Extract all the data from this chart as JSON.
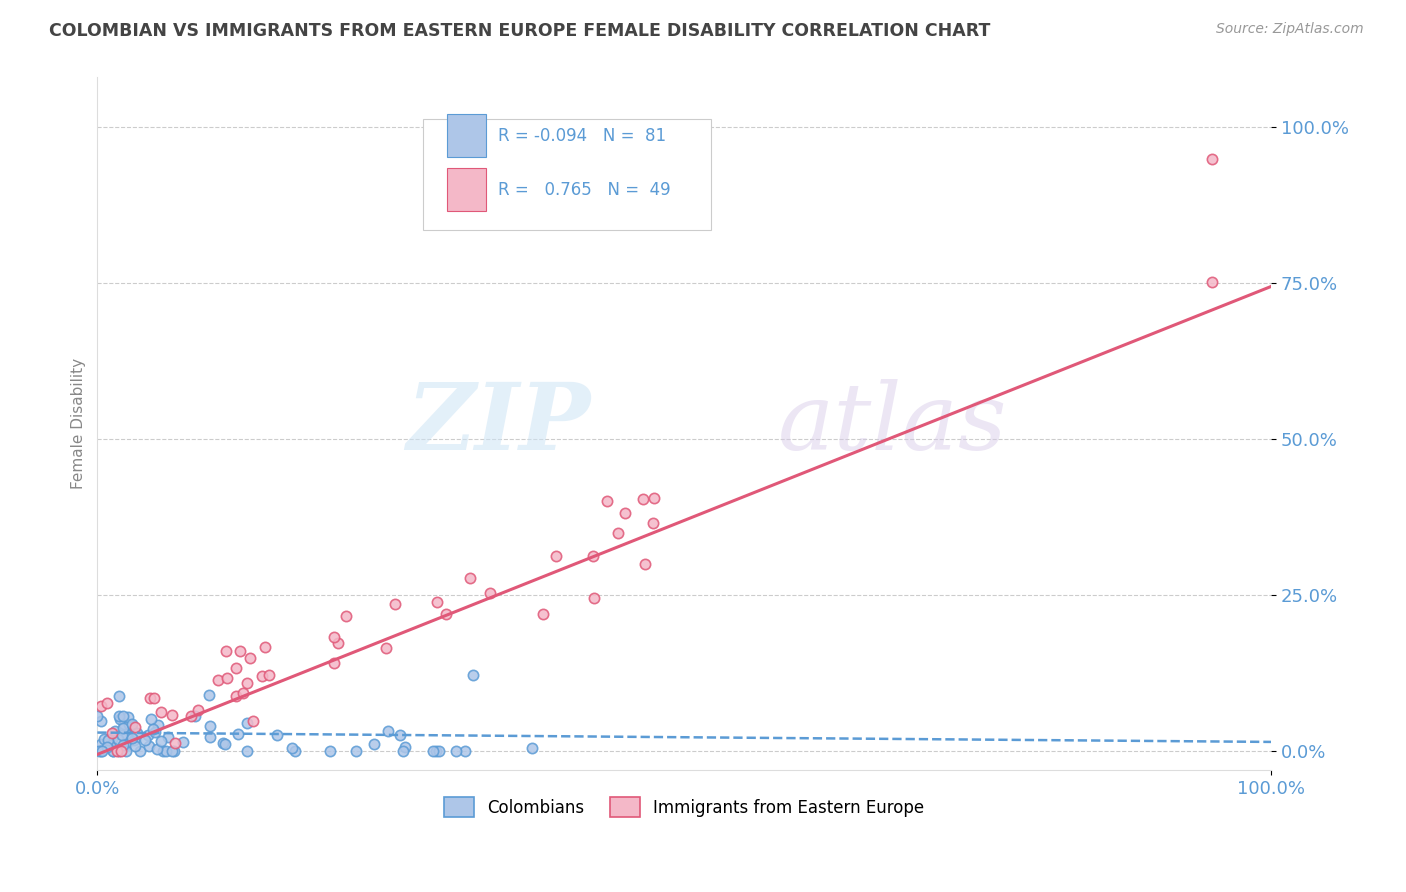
{
  "title": "COLOMBIAN VS IMMIGRANTS FROM EASTERN EUROPE FEMALE DISABILITY CORRELATION CHART",
  "source": "Source: ZipAtlas.com",
  "ylabel": "Female Disability",
  "xlim": [
    0,
    100
  ],
  "ylim": [
    -3,
    108
  ],
  "legend_r1": "R = -0.094",
  "legend_n1": "N =  81",
  "legend_r2": "R =   0.765",
  "legend_n2": "N =  49",
  "colombian_color": "#aec6e8",
  "colombian_edge": "#5b9bd5",
  "eastern_color": "#f4b8c8",
  "eastern_edge": "#e05878",
  "trend1_color": "#5b9bd5",
  "trend2_color": "#e05878",
  "ytick_labels": [
    "0.0%",
    "25.0%",
    "50.0%",
    "75.0%",
    "100.0%"
  ],
  "ytick_values": [
    0,
    25,
    50,
    75,
    100
  ],
  "xtick_labels": [
    "0.0%",
    "100.0%"
  ],
  "xtick_values": [
    0,
    100
  ],
  "watermark_zip": "ZIP",
  "watermark_atlas": "atlas",
  "background_color": "#ffffff",
  "grid_color": "#cccccc",
  "tick_color": "#5b9bd5",
  "label_color": "#888888",
  "title_color": "#444444"
}
